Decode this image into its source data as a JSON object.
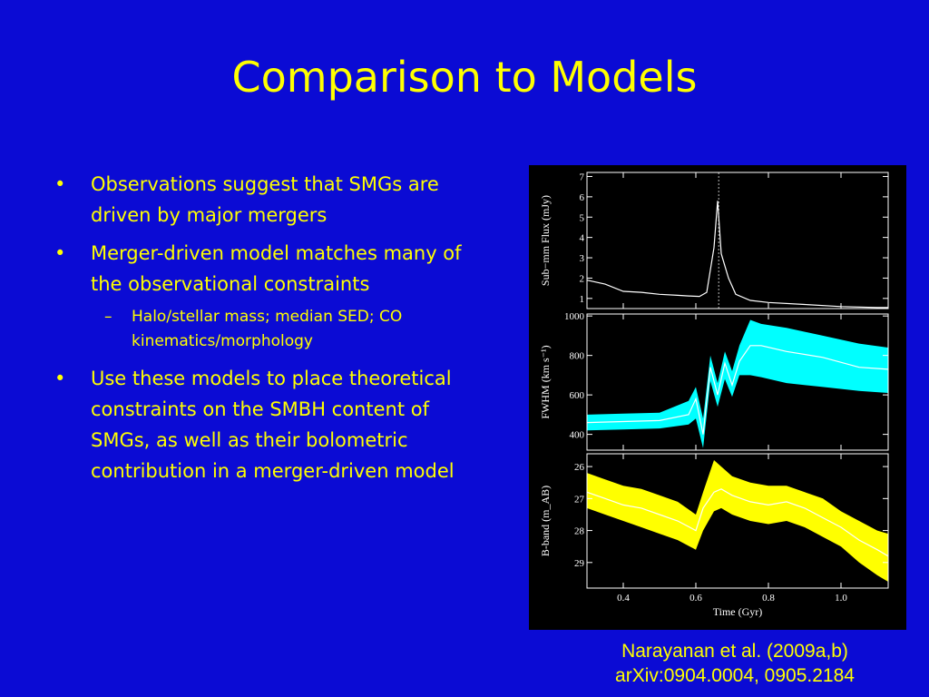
{
  "slide": {
    "title": "Comparison to Models",
    "bullets": [
      {
        "level": 1,
        "text": "Observations suggest that SMGs are driven by major mergers"
      },
      {
        "level": 1,
        "text": "Merger-driven model matches many of the observational constraints"
      },
      {
        "level": 2,
        "text": "Halo/stellar mass; median SED; CO kinematics/morphology"
      },
      {
        "level": 1,
        "text": "Use these models to place theoretical constraints on the SMBH content of SMGs, as well as their bolometric contribution in a merger-driven model"
      }
    ],
    "caption": {
      "line1": "Narayanan et al. (2009a,b)",
      "line2": "arXiv:0904.0004, 0905.2184"
    },
    "colors": {
      "background": "#0b0bd4",
      "text": "#ffff00",
      "fwhm_band": "#00ffff",
      "bband_band": "#ffff00"
    }
  },
  "chart_data": [
    {
      "type": "line",
      "ylabel": "Sub−mm Flux (mJy)",
      "xlim": [
        0.3,
        1.13
      ],
      "ylim": [
        0.5,
        7.2
      ],
      "yticks": [
        1,
        2,
        3,
        4,
        5,
        6,
        7
      ],
      "series": [
        {
          "x": [
            0.3,
            0.35,
            0.4,
            0.45,
            0.5,
            0.55,
            0.58,
            0.61,
            0.63,
            0.65,
            0.66,
            0.67,
            0.69,
            0.71,
            0.75,
            0.8,
            0.9,
            1.0,
            1.1,
            1.13
          ],
          "y": [
            1.9,
            1.7,
            1.35,
            1.3,
            1.2,
            1.15,
            1.12,
            1.1,
            1.3,
            3.5,
            5.8,
            3.2,
            2.0,
            1.2,
            0.9,
            0.8,
            0.7,
            0.6,
            0.55,
            0.55
          ]
        }
      ],
      "vline_x": 0.663
    },
    {
      "type": "area",
      "ylabel": "FWHM (km s⁻¹)",
      "xlim": [
        0.3,
        1.13
      ],
      "ylim": [
        320,
        1010
      ],
      "yticks": [
        400,
        600,
        800,
        1000
      ],
      "band_color": "#00ffff",
      "x": [
        0.3,
        0.4,
        0.5,
        0.58,
        0.6,
        0.62,
        0.64,
        0.66,
        0.68,
        0.7,
        0.72,
        0.75,
        0.78,
        0.85,
        0.95,
        1.05,
        1.13
      ],
      "median": [
        460,
        465,
        470,
        500,
        580,
        400,
        740,
        600,
        760,
        650,
        770,
        850,
        850,
        820,
        790,
        740,
        730
      ],
      "lower": [
        420,
        425,
        430,
        450,
        480,
        330,
        670,
        540,
        680,
        590,
        700,
        700,
        690,
        660,
        640,
        620,
        610
      ],
      "upper": [
        500,
        505,
        510,
        570,
        640,
        480,
        800,
        660,
        820,
        720,
        850,
        980,
        960,
        940,
        900,
        860,
        840
      ]
    },
    {
      "type": "area",
      "ylabel": "B-band (m_AB)",
      "xlabel": "Time (Gyr)",
      "xlim": [
        0.3,
        1.13
      ],
      "ylim": [
        29.8,
        25.6
      ],
      "yticks": [
        26,
        27,
        28,
        29
      ],
      "xticks": [
        0.4,
        0.6,
        0.8,
        1.0
      ],
      "band_color": "#ffff00",
      "x": [
        0.3,
        0.35,
        0.4,
        0.45,
        0.5,
        0.55,
        0.6,
        0.62,
        0.65,
        0.67,
        0.7,
        0.75,
        0.8,
        0.85,
        0.9,
        0.95,
        1.0,
        1.05,
        1.1,
        1.13
      ],
      "median": [
        26.8,
        27.0,
        27.2,
        27.3,
        27.5,
        27.7,
        28.0,
        27.3,
        26.8,
        26.7,
        26.9,
        27.1,
        27.2,
        27.1,
        27.3,
        27.6,
        27.9,
        28.3,
        28.6,
        28.8
      ],
      "lower": [
        26.2,
        26.4,
        26.6,
        26.7,
        26.9,
        27.1,
        27.5,
        26.8,
        25.8,
        26.0,
        26.3,
        26.5,
        26.6,
        26.6,
        26.8,
        27.0,
        27.4,
        27.7,
        28.0,
        28.1
      ],
      "upper": [
        27.3,
        27.5,
        27.7,
        27.9,
        28.1,
        28.3,
        28.6,
        28.0,
        27.4,
        27.3,
        27.5,
        27.7,
        27.8,
        27.7,
        27.9,
        28.2,
        28.5,
        29.0,
        29.4,
        29.6
      ]
    }
  ]
}
